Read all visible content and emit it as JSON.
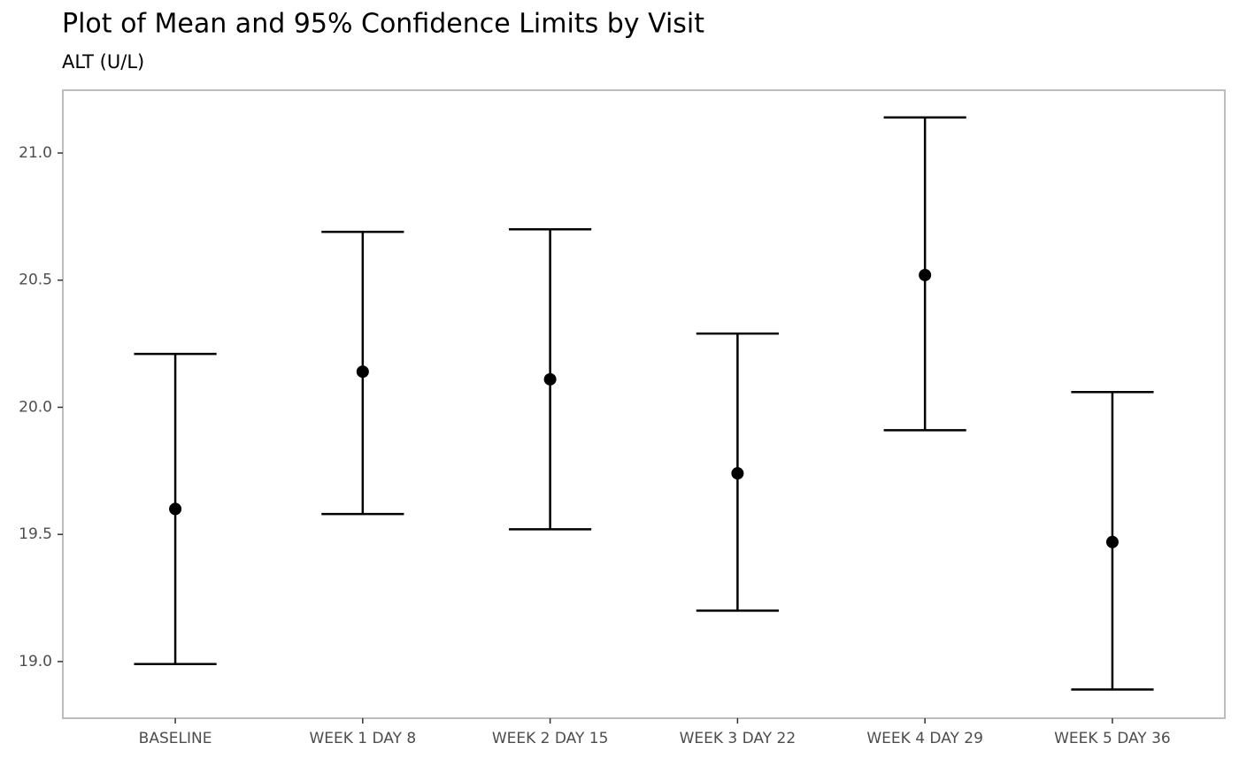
{
  "chart_data": {
    "type": "errorbar",
    "title": "Plot of Mean and 95% Confidence Limits by Visit",
    "subtitle": "ALT (U/L)",
    "categories": [
      "BASELINE",
      "WEEK 1 DAY 8",
      "WEEK 2 DAY 15",
      "WEEK 3 DAY 22",
      "WEEK 4 DAY 29",
      "WEEK 5 DAY 36"
    ],
    "values": [
      19.6,
      20.14,
      20.11,
      19.74,
      20.52,
      19.47
    ],
    "lower": [
      18.99,
      19.58,
      19.52,
      19.2,
      19.91,
      18.89
    ],
    "upper": [
      20.21,
      20.69,
      20.7,
      20.29,
      21.14,
      20.06
    ],
    "color": "#000000",
    "ylim": [
      18.777,
      21.247
    ],
    "yticks": [
      {
        "value": 19,
        "label": "19.0"
      },
      19.5,
      {
        "value": 20,
        "label": "20.0"
      },
      20.5,
      {
        "value": 21,
        "label": "21.0"
      }
    ],
    "grid": false
  }
}
